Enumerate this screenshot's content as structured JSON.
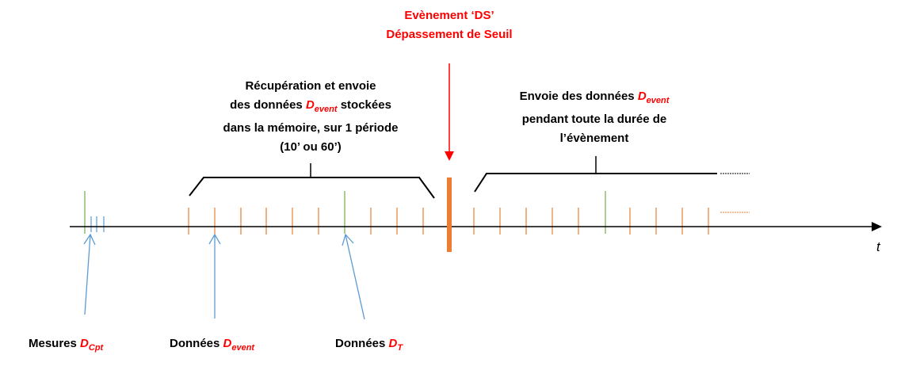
{
  "event_title": {
    "line1": "Evènement ‘DS’",
    "line2": "Dépassement de Seuil"
  },
  "recovery_text": {
    "line1": "Récupération et envoie",
    "line2_pre": "des données ",
    "d": "D",
    "sub": "event",
    "line2_post": " stockées",
    "line3": "dans la mémoire, sur 1 période",
    "line4": "(10’ ou 60’)"
  },
  "send_text": {
    "line1_pre": "Envoie des données ",
    "d": "D",
    "sub": "event",
    "line2": "pendant toute la durée de",
    "line3": "l’évènement"
  },
  "axis_label": "t",
  "bottom_labels": [
    {
      "pre": "Mesures ",
      "d": "D",
      "sub": "Cpt"
    },
    {
      "pre": "Données ",
      "d": "D",
      "sub": "event"
    },
    {
      "pre": "Données ",
      "d": "D",
      "sub": "T"
    }
  ],
  "colors": {
    "orange": "#ed7d31",
    "green": "#70ad47",
    "blue": "#5b9bd5",
    "red": "#ff0000"
  }
}
